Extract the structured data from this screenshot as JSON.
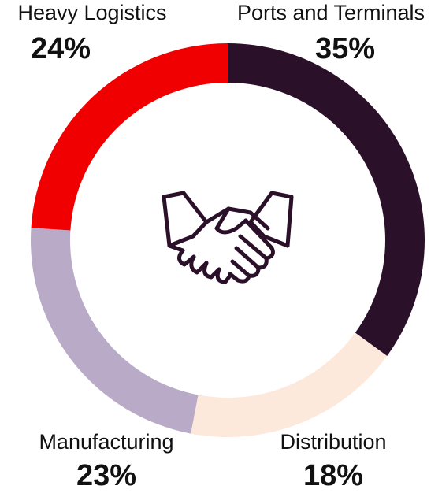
{
  "chart_data": {
    "type": "donut",
    "categories": [
      "Ports and Terminals",
      "Distribution",
      "Manufacturing",
      "Heavy Logistics"
    ],
    "values": [
      35,
      18,
      23,
      24
    ],
    "value_labels": [
      "35%",
      "18%",
      "23%",
      "24%"
    ],
    "colors": [
      "#2b1029",
      "#fde8dc",
      "#b9aac8",
      "#f00000"
    ]
  }
}
